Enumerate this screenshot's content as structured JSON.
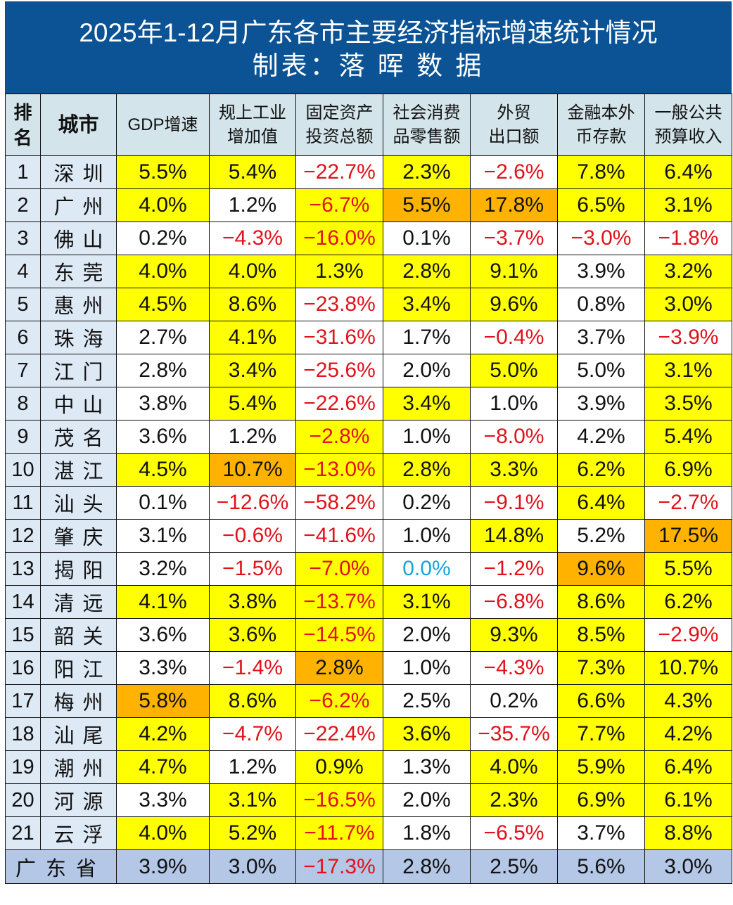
{
  "title": {
    "line1": "2025年1-12月广东各市主要经济指标增速统计情况",
    "line2": "制表：落 晖 数 据"
  },
  "colors": {
    "title_band": "#0b5394",
    "header_bg": "#d3e4ea",
    "rank_city_bg": "#dde9f5",
    "highlight_yellow": "#ffff00",
    "highlight_orange": "#ffb300",
    "negative_text": "#e0121b",
    "zero_text": "#1aa3d9",
    "total_row_bg": "#b4c7e7"
  },
  "table": {
    "headers": {
      "rank": "排名",
      "city": "城市",
      "gdp": "GDP增速",
      "industry": "规上工业增加值",
      "fixed_invest": "固定资产投资总额",
      "retail": "社会消费品零售额",
      "export": "外贸出口额",
      "deposits": "金融本外币存款",
      "budget": "一般公共预算收入"
    },
    "header_lines": {
      "industry": [
        "规上工业",
        "增加值"
      ],
      "fixed_invest": [
        "固定资产",
        "投资总额"
      ],
      "retail": [
        "社会消费",
        "品零售额"
      ],
      "export": [
        "外贸",
        "出口额"
      ],
      "deposits": [
        "金融本外",
        "币存款"
      ],
      "budget": [
        "一般公共",
        "预算收入"
      ],
      "rank": [
        "排",
        "名"
      ]
    },
    "rows": [
      {
        "rank": "1",
        "city": "深圳",
        "values": [
          "5.5%",
          "5.4%",
          "-22.7%",
          "2.3%",
          "-2.6%",
          "7.8%",
          "6.4%"
        ],
        "fills": [
          "y",
          "y",
          "",
          "y",
          "",
          "y",
          "y"
        ]
      },
      {
        "rank": "2",
        "city": "广州",
        "values": [
          "4.0%",
          "1.2%",
          "-6.7%",
          "5.5%",
          "17.8%",
          "6.5%",
          "3.1%"
        ],
        "fills": [
          "y",
          "",
          "y",
          "o",
          "o",
          "y",
          "y"
        ]
      },
      {
        "rank": "3",
        "city": "佛山",
        "values": [
          "0.2%",
          "-4.3%",
          "-16.0%",
          "0.1%",
          "-3.7%",
          "-3.0%",
          "-1.8%"
        ],
        "fills": [
          "",
          "",
          "y",
          "",
          "",
          "",
          ""
        ]
      },
      {
        "rank": "4",
        "city": "东莞",
        "values": [
          "4.0%",
          "4.0%",
          "1.3%",
          "2.8%",
          "9.1%",
          "3.9%",
          "3.2%"
        ],
        "fills": [
          "y",
          "y",
          "y",
          "y",
          "y",
          "",
          "y"
        ]
      },
      {
        "rank": "5",
        "city": "惠州",
        "values": [
          "4.5%",
          "8.6%",
          "-23.8%",
          "3.4%",
          "9.6%",
          "0.8%",
          "3.0%"
        ],
        "fills": [
          "y",
          "y",
          "",
          "y",
          "y",
          "",
          "y"
        ]
      },
      {
        "rank": "6",
        "city": "珠海",
        "values": [
          "2.7%",
          "4.1%",
          "-31.6%",
          "1.7%",
          "-0.4%",
          "3.7%",
          "-3.9%"
        ],
        "fills": [
          "",
          "y",
          "",
          "",
          "",
          "",
          ""
        ]
      },
      {
        "rank": "7",
        "city": "江门",
        "values": [
          "2.8%",
          "3.4%",
          "-25.6%",
          "2.0%",
          "5.0%",
          "5.0%",
          "3.1%"
        ],
        "fills": [
          "",
          "y",
          "",
          "",
          "y",
          "",
          "y"
        ]
      },
      {
        "rank": "8",
        "city": "中山",
        "values": [
          "3.8%",
          "5.4%",
          "-22.6%",
          "3.4%",
          "1.0%",
          "3.9%",
          "3.5%"
        ],
        "fills": [
          "",
          "y",
          "",
          "y",
          "",
          "",
          "y"
        ]
      },
      {
        "rank": "9",
        "city": "茂名",
        "values": [
          "3.6%",
          "1.2%",
          "-2.8%",
          "1.0%",
          "-8.0%",
          "4.2%",
          "5.4%"
        ],
        "fills": [
          "",
          "",
          "y",
          "",
          "",
          "",
          "y"
        ]
      },
      {
        "rank": "10",
        "city": "湛江",
        "values": [
          "4.5%",
          "10.7%",
          "-13.0%",
          "2.8%",
          "3.3%",
          "6.2%",
          "6.9%"
        ],
        "fills": [
          "y",
          "o",
          "y",
          "y",
          "y",
          "y",
          "y"
        ]
      },
      {
        "rank": "11",
        "city": "汕头",
        "values": [
          "0.1%",
          "-12.6%",
          "-58.2%",
          "0.2%",
          "-9.1%",
          "6.4%",
          "-2.7%"
        ],
        "fills": [
          "",
          "",
          "",
          "",
          "",
          "y",
          ""
        ]
      },
      {
        "rank": "12",
        "city": "肇庆",
        "values": [
          "3.1%",
          "-0.6%",
          "-41.6%",
          "1.0%",
          "14.8%",
          "5.2%",
          "17.5%"
        ],
        "fills": [
          "",
          "",
          "",
          "",
          "y",
          "",
          "o"
        ]
      },
      {
        "rank": "13",
        "city": "揭阳",
        "values": [
          "3.2%",
          "-1.5%",
          "-7.0%",
          "0.0%",
          "-1.2%",
          "9.6%",
          "5.5%"
        ],
        "fills": [
          "",
          "",
          "y",
          "",
          "",
          "o",
          "y"
        ]
      },
      {
        "rank": "14",
        "city": "清远",
        "values": [
          "4.1%",
          "3.8%",
          "-13.7%",
          "3.1%",
          "-6.8%",
          "8.6%",
          "6.2%"
        ],
        "fills": [
          "y",
          "y",
          "y",
          "y",
          "",
          "y",
          "y"
        ]
      },
      {
        "rank": "15",
        "city": "韶关",
        "values": [
          "3.6%",
          "3.6%",
          "-14.5%",
          "2.0%",
          "9.3%",
          "8.5%",
          "-2.9%"
        ],
        "fills": [
          "",
          "y",
          "y",
          "",
          "y",
          "y",
          ""
        ]
      },
      {
        "rank": "16",
        "city": "阳江",
        "values": [
          "3.3%",
          "-1.4%",
          "2.8%",
          "1.0%",
          "-4.3%",
          "7.3%",
          "10.7%"
        ],
        "fills": [
          "",
          "",
          "o",
          "",
          "",
          "y",
          "y"
        ]
      },
      {
        "rank": "17",
        "city": "梅州",
        "values": [
          "5.8%",
          "8.6%",
          "-6.2%",
          "2.5%",
          "0.2%",
          "6.6%",
          "4.3%"
        ],
        "fills": [
          "o",
          "y",
          "y",
          "",
          "",
          "y",
          "y"
        ]
      },
      {
        "rank": "18",
        "city": "汕尾",
        "values": [
          "4.2%",
          "-4.7%",
          "-22.4%",
          "3.6%",
          "-35.7%",
          "7.7%",
          "4.2%"
        ],
        "fills": [
          "y",
          "",
          "",
          "y",
          "",
          "y",
          "y"
        ]
      },
      {
        "rank": "19",
        "city": "潮州",
        "values": [
          "4.7%",
          "1.2%",
          "0.9%",
          "1.3%",
          "4.0%",
          "5.9%",
          "6.4%"
        ],
        "fills": [
          "y",
          "",
          "y",
          "",
          "y",
          "y",
          "y"
        ]
      },
      {
        "rank": "20",
        "city": "河源",
        "values": [
          "3.3%",
          "3.1%",
          "-16.5%",
          "2.0%",
          "2.3%",
          "6.9%",
          "6.1%"
        ],
        "fills": [
          "",
          "y",
          "y",
          "",
          "y",
          "y",
          "y"
        ]
      },
      {
        "rank": "21",
        "city": "云浮",
        "values": [
          "4.0%",
          "5.2%",
          "-11.7%",
          "1.8%",
          "-6.5%",
          "3.7%",
          "8.8%"
        ],
        "fills": [
          "y",
          "y",
          "y",
          "",
          "",
          "",
          "y"
        ]
      }
    ],
    "total": {
      "label": "广东省",
      "values": [
        "3.9%",
        "3.0%",
        "-17.3%",
        "2.8%",
        "2.5%",
        "5.6%",
        "3.0%"
      ]
    }
  }
}
